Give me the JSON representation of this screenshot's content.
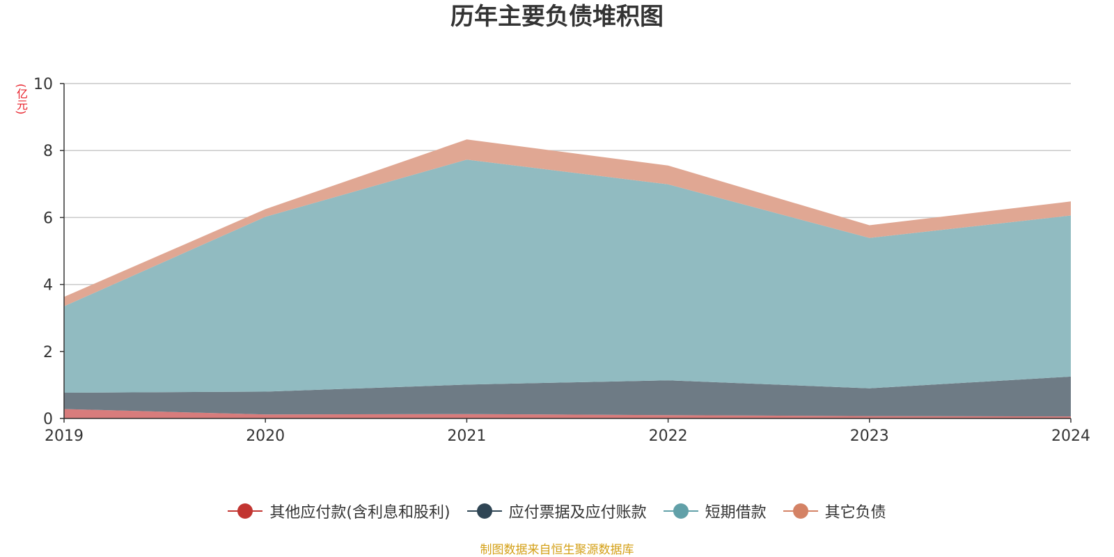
{
  "chart_data": {
    "type": "area",
    "stacked": true,
    "title": "历年主要负债堆积图",
    "unit_label": "(亿元)",
    "x": [
      "2019",
      "2020",
      "2021",
      "2022",
      "2023",
      "2024"
    ],
    "ylim": [
      0,
      10
    ],
    "yticks": [
      "0",
      "2",
      "4",
      "6",
      "8",
      "10"
    ],
    "grid": true,
    "legend_position": "bottom",
    "series": [
      {
        "name": "其他应付款(含利息和股利)",
        "color": "#c23531",
        "area_color": "#d87c7c",
        "values": [
          0.28,
          0.12,
          0.13,
          0.1,
          0.07,
          0.06
        ]
      },
      {
        "name": "应付票据及应付账款",
        "color": "#2f4554",
        "area_color": "#6e7b85",
        "values": [
          0.49,
          0.68,
          0.88,
          1.04,
          0.83,
          1.19
        ]
      },
      {
        "name": "短期借款",
        "color": "#61a0a8",
        "area_color": "#91bbc1",
        "values": [
          2.58,
          5.22,
          6.72,
          5.85,
          4.49,
          4.81
        ]
      },
      {
        "name": "其它负债",
        "color": "#d48265",
        "area_color": "#e0a793",
        "values": [
          0.28,
          0.23,
          0.6,
          0.56,
          0.38,
          0.42
        ]
      }
    ],
    "source": "制图数据来自恒生聚源数据库",
    "unit_color": "#e8202a",
    "source_color": "#d4a017"
  }
}
